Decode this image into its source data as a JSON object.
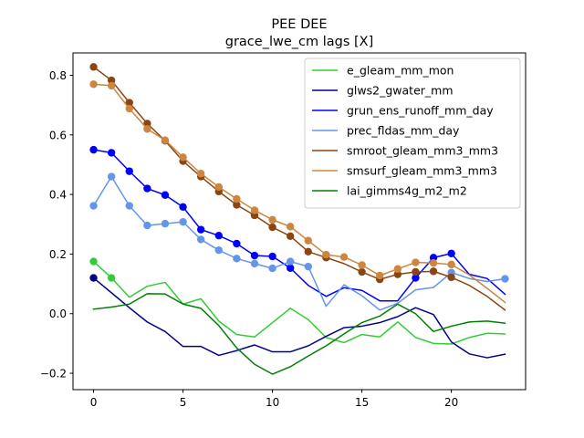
{
  "chart_data": {
    "type": "line",
    "title": "PEE DEE",
    "subtitle": "grace_lwe_cm lags [X]",
    "xlabel": "",
    "ylabel": "",
    "xlim": [
      -1.15,
      24.15
    ],
    "ylim": [
      -0.255,
      0.875
    ],
    "xticks": [
      0,
      5,
      10,
      15,
      20
    ],
    "yticks": [
      -0.2,
      0.0,
      0.2,
      0.4,
      0.6,
      0.8
    ],
    "ytick_labels": [
      "−0.2",
      "0.0",
      "0.2",
      "0.4",
      "0.6",
      "0.8"
    ],
    "grid": false,
    "legend_position": "top-right",
    "x": [
      0,
      1,
      2,
      3,
      4,
      5,
      6,
      7,
      8,
      9,
      10,
      11,
      12,
      13,
      14,
      15,
      16,
      17,
      18,
      19,
      20,
      21,
      22,
      23
    ],
    "series": [
      {
        "name": "e_gleam_mm_mon",
        "color": "#32cd32",
        "values": [
          0.175,
          0.12,
          0.055,
          0.092,
          0.105,
          0.032,
          0.05,
          -0.025,
          -0.07,
          -0.078,
          -0.03,
          0.018,
          -0.02,
          -0.08,
          -0.097,
          -0.07,
          -0.078,
          -0.028,
          -0.08,
          -0.1,
          -0.102,
          -0.08,
          -0.066,
          -0.068
        ],
        "markers": [
          0,
          1
        ]
      },
      {
        "name": "glws2_gwater_mm",
        "color": "#00008b",
        "values": [
          0.12,
          0.07,
          0.02,
          -0.028,
          -0.06,
          -0.11,
          -0.11,
          -0.14,
          -0.124,
          -0.105,
          -0.128,
          -0.128,
          -0.108,
          -0.076,
          -0.047,
          -0.042,
          -0.03,
          -0.01,
          0.02,
          -0.003,
          -0.095,
          -0.135,
          -0.148,
          -0.136
        ],
        "markers": [
          0
        ]
      },
      {
        "name": "grun_ens_runoff_mm_day",
        "color": "#0000ff",
        "values": [
          0.55,
          0.54,
          0.478,
          0.42,
          0.398,
          0.358,
          0.282,
          0.262,
          0.235,
          0.195,
          0.192,
          0.153,
          0.095,
          0.058,
          0.087,
          0.078,
          0.043,
          0.043,
          0.12,
          0.188,
          0.202,
          0.132,
          0.118,
          0.065
        ],
        "markers": [
          0,
          1,
          2,
          3,
          4,
          5,
          6,
          7,
          8,
          9,
          10,
          11,
          18,
          19,
          20
        ]
      },
      {
        "name": "prec_fldas_mm_day",
        "color": "#6495ed",
        "values": [
          0.362,
          0.46,
          0.362,
          0.296,
          0.302,
          0.308,
          0.249,
          0.213,
          0.185,
          0.168,
          0.152,
          0.175,
          0.158,
          0.025,
          0.097,
          0.06,
          0.012,
          0.035,
          0.08,
          0.088,
          0.138,
          0.118,
          0.108,
          0.117
        ],
        "markers": [
          0,
          1,
          2,
          3,
          4,
          5,
          6,
          7,
          8,
          9,
          10,
          11,
          12,
          20,
          23
        ]
      },
      {
        "name": "smroot_gleam_mm3_mm3",
        "color": "#8b4513",
        "values": [
          0.828,
          0.783,
          0.708,
          0.638,
          0.58,
          0.512,
          0.46,
          0.41,
          0.365,
          0.33,
          0.29,
          0.26,
          0.208,
          0.188,
          0.168,
          0.14,
          0.115,
          0.132,
          0.14,
          0.142,
          0.122,
          0.095,
          0.058,
          0.012
        ],
        "markers": [
          0,
          1,
          2,
          3,
          4,
          5,
          6,
          7,
          8,
          9,
          10,
          11,
          12,
          13,
          15,
          16,
          17,
          18,
          19,
          20
        ]
      },
      {
        "name": "smsurf_gleam_mm3_mm3",
        "color": "#cd853f",
        "values": [
          0.77,
          0.765,
          0.688,
          0.62,
          0.582,
          0.525,
          0.47,
          0.425,
          0.385,
          0.347,
          0.315,
          0.292,
          0.245,
          0.198,
          0.19,
          0.163,
          0.128,
          0.15,
          0.172,
          0.17,
          0.165,
          0.13,
          0.085,
          0.038
        ],
        "markers": [
          0,
          1,
          2,
          3,
          4,
          5,
          6,
          7,
          8,
          9,
          10,
          11,
          12,
          13,
          14,
          15,
          16,
          17,
          18,
          19,
          20
        ]
      },
      {
        "name": "lai_gimms4g_m2_m2",
        "color": "#008000",
        "values": [
          0.015,
          0.022,
          0.032,
          0.067,
          0.066,
          0.032,
          0.018,
          -0.04,
          -0.115,
          -0.17,
          -0.203,
          -0.178,
          -0.142,
          -0.108,
          -0.068,
          -0.03,
          -0.008,
          0.032,
          0.0,
          -0.06,
          -0.042,
          -0.028,
          -0.025,
          -0.032
        ],
        "markers": []
      }
    ]
  }
}
